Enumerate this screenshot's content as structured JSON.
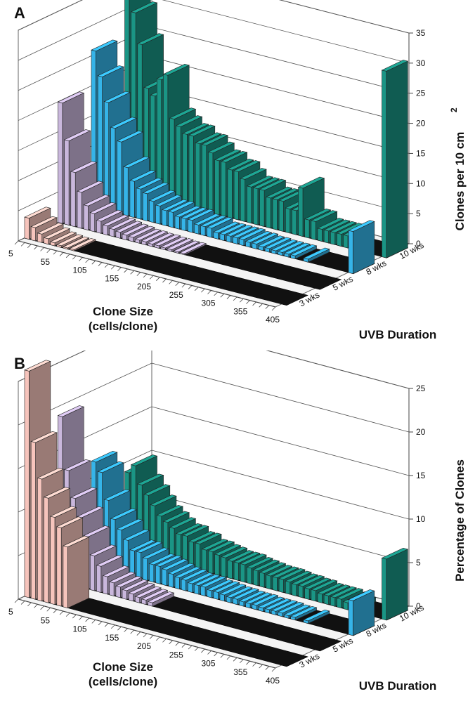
{
  "chart_data": [
    {
      "panel_label": "A",
      "type": "bar",
      "style": "3d-stacked-rows",
      "x_axis_title": [
        "Clone Size",
        "(cells/clone)"
      ],
      "x_ticks": [
        "5",
        "55",
        "105",
        "155",
        "205",
        "255",
        "305",
        "355",
        "405"
      ],
      "depth_axis_title": "UVB Duration",
      "y_axis_title": "Clones per 10 cm",
      "y_axis_superscript": "2",
      "y_ticks": [
        "0",
        "5",
        "10",
        "15",
        "20",
        "25",
        "30",
        "35"
      ],
      "ylim": [
        0,
        35
      ],
      "grid": true,
      "categories": [
        "5",
        "15",
        "25",
        "35",
        "45",
        "55",
        "65",
        "75",
        "85",
        "95",
        "105",
        "115",
        "125",
        "135",
        "145",
        "155",
        "165",
        "175",
        "185",
        "195",
        "205",
        "215",
        "225",
        "235",
        "245",
        "255",
        "265",
        "275",
        "285",
        "295",
        "305",
        "315",
        "325",
        "335",
        "345",
        "355",
        "365",
        "375",
        "385",
        "395",
        "405"
      ],
      "series": [
        {
          "name": "3 wks",
          "color": "#f6c4bc",
          "values": [
            3.5,
            2.2,
            1.4,
            0.9,
            0.5,
            0.3,
            0.2,
            0.2,
            0,
            0,
            0,
            0,
            0,
            0,
            0,
            0,
            0,
            0,
            0,
            0,
            0,
            0,
            0,
            0,
            0,
            0,
            0,
            0,
            0,
            0,
            0,
            0,
            0,
            0,
            0,
            0,
            0,
            0,
            0,
            0,
            0
          ]
        },
        {
          "name": "5 wks",
          "color": "#c9b7dc",
          "values": [
            20,
            14,
            9,
            6,
            4,
            3,
            2,
            1.5,
            1.2,
            1,
            0.8,
            0.7,
            0.5,
            0.5,
            0.4,
            0.4,
            0.3,
            0.3,
            0.2,
            0.2,
            0,
            0,
            0,
            0,
            0,
            0,
            0,
            0,
            0,
            0,
            0,
            0,
            0,
            0,
            0,
            0,
            0,
            0,
            0,
            0,
            0
          ]
        },
        {
          "name": "8 wks",
          "color": "#35b4e8",
          "values": [
            26,
            22,
            18,
            14,
            12,
            8,
            6,
            5,
            4.5,
            3.5,
            3,
            2.5,
            2.5,
            2,
            2,
            2,
            1.5,
            1.5,
            1.5,
            1,
            1,
            1,
            1,
            1,
            0.8,
            0.8,
            0.6,
            0.6,
            0.5,
            0.5,
            0.5,
            0.5,
            0,
            0.5,
            0,
            0,
            0,
            0,
            0,
            0,
            7
          ]
        },
        {
          "name": "10 wks",
          "color": "#1a9585",
          "values": [
            32,
            30,
            25,
            18,
            17,
            20,
            21,
            14,
            13,
            12,
            12,
            11,
            11,
            10,
            9,
            9,
            8,
            8,
            7,
            6,
            6,
            6,
            5,
            5,
            5,
            4,
            4,
            8,
            3,
            3,
            2,
            2,
            2,
            2,
            2,
            0,
            0,
            0,
            0,
            0,
            31
          ]
        }
      ]
    },
    {
      "panel_label": "B",
      "type": "bar",
      "style": "3d-stacked-rows",
      "x_axis_title": [
        "Clone Size",
        "(cells/clone)"
      ],
      "x_ticks": [
        "5",
        "55",
        "105",
        "155",
        "205",
        "255",
        "305",
        "355",
        "405"
      ],
      "depth_axis_title": "UVB Duration",
      "y_axis_title": "Percentage of Clones",
      "y_ticks": [
        "0",
        "5",
        "10",
        "15",
        "20",
        "25"
      ],
      "ylim": [
        0,
        25
      ],
      "grid": true,
      "categories": [
        "5",
        "15",
        "25",
        "35",
        "45",
        "55",
        "65",
        "75",
        "85",
        "95",
        "105",
        "115",
        "125",
        "135",
        "145",
        "155",
        "165",
        "175",
        "185",
        "195",
        "205",
        "215",
        "225",
        "235",
        "245",
        "255",
        "265",
        "275",
        "285",
        "295",
        "305",
        "315",
        "325",
        "335",
        "345",
        "355",
        "365",
        "375",
        "385",
        "395",
        "405"
      ],
      "series": [
        {
          "name": "3 wks",
          "color": "#f6c4bc",
          "values": [
            26,
            18,
            14,
            12,
            10,
            9,
            7,
            0,
            0,
            0,
            0,
            0,
            0,
            0,
            0,
            0,
            0,
            0,
            0,
            0,
            0,
            0,
            0,
            0,
            0,
            0,
            0,
            0,
            0,
            0,
            0,
            0,
            0,
            0,
            0,
            0,
            0,
            0,
            0,
            0,
            0
          ]
        },
        {
          "name": "5 wks",
          "color": "#c9b7dc",
          "values": [
            19,
            13,
            10,
            8,
            6,
            4,
            3,
            2,
            1.5,
            1.2,
            1,
            0.8,
            0.6,
            0.5,
            0.4,
            0,
            0,
            0,
            0,
            0,
            0,
            0,
            0,
            0,
            0,
            0,
            0,
            0,
            0,
            0,
            0,
            0,
            0,
            0,
            0,
            0,
            0,
            0,
            0,
            0,
            0
          ]
        },
        {
          "name": "8 wks",
          "color": "#35b4e8",
          "values": [
            12,
            11,
            8,
            6,
            5,
            4,
            3,
            3,
            2.5,
            2,
            2,
            1.8,
            1.5,
            1.3,
            1.2,
            1,
            1,
            1,
            0.8,
            0.8,
            0.7,
            0.6,
            0.6,
            0.5,
            0.5,
            0.5,
            0.4,
            0.4,
            0.4,
            0.4,
            0.3,
            0.3,
            0,
            0.3,
            0,
            0,
            0,
            0,
            0,
            0,
            4
          ]
        },
        {
          "name": "10 wks",
          "color": "#1a9585",
          "values": [
            9,
            10,
            8,
            7,
            6,
            5,
            4.5,
            4,
            3.5,
            3.5,
            3,
            3,
            2.5,
            2.5,
            2.3,
            2.2,
            2,
            2,
            2,
            1.8,
            1.7,
            1.6,
            1.5,
            1.5,
            1.5,
            1.4,
            1.3,
            1.3,
            1.2,
            1.2,
            1,
            1,
            1,
            1,
            0.8,
            0.5,
            0,
            0,
            0,
            0,
            7
          ]
        }
      ]
    }
  ]
}
